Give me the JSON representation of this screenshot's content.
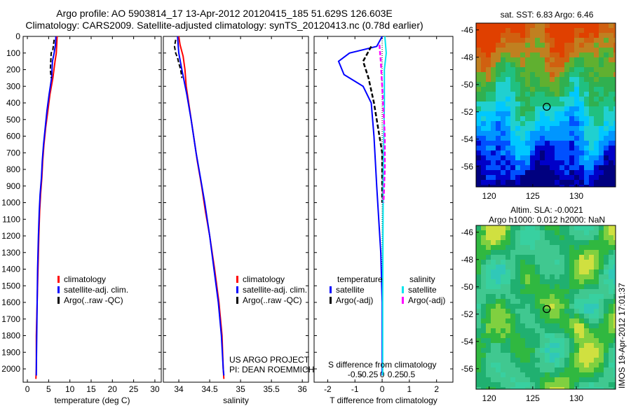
{
  "header": {
    "title1": "Argo profile: AO 5903814_17 13-Apr-2012 20120415_185 51.629S 126.603E",
    "title2": "Climatology: CARS2009. Satellite-adjusted climatology: synTS_20120413.nc (0.78d earlier)"
  },
  "depth_ticks": [
    0,
    100,
    200,
    300,
    400,
    500,
    600,
    700,
    800,
    900,
    1000,
    1100,
    1200,
    1300,
    1400,
    1500,
    1600,
    1700,
    1800,
    1900,
    2000
  ],
  "colors": {
    "climatology": "#ff0000",
    "satellite": "#0000ff",
    "argo": "#000000",
    "sat_salinity": "#00e5ee",
    "argo_salinity": "#ff00ff"
  },
  "chart_data": [
    {
      "type": "line",
      "panel": "temperature",
      "xlabel": "temperature (deg C)",
      "xlim": [
        -1,
        31.5
      ],
      "xticks": [
        0,
        5,
        10,
        15,
        20,
        25,
        30
      ],
      "ylim": [
        0,
        2080
      ],
      "series": [
        {
          "name": "climatology",
          "points": [
            [
              7,
              0
            ],
            [
              6.9,
              50
            ],
            [
              6.8,
              100
            ],
            [
              6.5,
              150
            ],
            [
              6,
              250
            ],
            [
              5.3,
              350
            ],
            [
              4.8,
              450
            ],
            [
              4.3,
              550
            ],
            [
              3.9,
              650
            ],
            [
              3.6,
              750
            ],
            [
              3.4,
              850
            ],
            [
              3.1,
              950
            ],
            [
              2.9,
              1050
            ],
            [
              2.7,
              1200
            ],
            [
              2.5,
              1400
            ],
            [
              2.3,
              1600
            ],
            [
              2.1,
              1800
            ],
            [
              2.1,
              2000
            ],
            [
              2.0,
              2060
            ]
          ]
        },
        {
          "name": "satellite-adj. clim.",
          "points": [
            [
              6.7,
              0
            ],
            [
              6.6,
              50
            ],
            [
              6.3,
              100
            ],
            [
              5.9,
              150
            ],
            [
              5.7,
              250
            ],
            [
              5.1,
              350
            ],
            [
              4.6,
              450
            ],
            [
              4.2,
              550
            ],
            [
              3.8,
              650
            ],
            [
              3.5,
              750
            ],
            [
              3.3,
              850
            ],
            [
              3.0,
              950
            ],
            [
              2.8,
              1050
            ],
            [
              2.6,
              1200
            ],
            [
              2.4,
              1400
            ],
            [
              2.3,
              1600
            ],
            [
              2.2,
              1800
            ],
            [
              2.1,
              2000
            ],
            [
              2.1,
              2040
            ]
          ]
        },
        {
          "name": "Argo(..raw -QC)",
          "points": [
            [
              6.3,
              20
            ],
            [
              6.0,
              80
            ],
            [
              5.6,
              100
            ],
            [
              5.5,
              150
            ],
            [
              5.4,
              200
            ],
            [
              5.6,
              250
            ]
          ]
        }
      ],
      "legend": [
        "climatology",
        "satellite-adj. clim.",
        "Argo(..raw -QC)"
      ]
    },
    {
      "type": "line",
      "panel": "salinity",
      "xlabel": "salinity",
      "xlim": [
        33.75,
        36.1
      ],
      "xticks": [
        34,
        34.5,
        35,
        35.5,
        36
      ],
      "ylim": [
        0,
        2080
      ],
      "series": [
        {
          "name": "climatology",
          "points": [
            [
              34.0,
              0
            ],
            [
              34.02,
              50
            ],
            [
              34.07,
              120
            ],
            [
              34.1,
              200
            ],
            [
              34.12,
              300
            ],
            [
              34.18,
              450
            ],
            [
              34.24,
              600
            ],
            [
              34.3,
              750
            ],
            [
              34.37,
              900
            ],
            [
              34.43,
              1050
            ],
            [
              34.5,
              1200
            ],
            [
              34.58,
              1400
            ],
            [
              34.65,
              1600
            ],
            [
              34.7,
              1800
            ],
            [
              34.72,
              2000
            ],
            [
              34.73,
              2060
            ]
          ]
        },
        {
          "name": "satellite-adj. clim.",
          "points": [
            [
              33.98,
              0
            ],
            [
              33.99,
              50
            ],
            [
              34.0,
              100
            ],
            [
              34.05,
              200
            ],
            [
              34.13,
              350
            ],
            [
              34.2,
              500
            ],
            [
              34.28,
              700
            ],
            [
              34.35,
              850
            ],
            [
              34.42,
              1000
            ],
            [
              34.5,
              1200
            ],
            [
              34.57,
              1400
            ],
            [
              34.64,
              1600
            ],
            [
              34.69,
              1800
            ],
            [
              34.72,
              2000
            ],
            [
              34.73,
              2040
            ]
          ]
        },
        {
          "name": "Argo(..raw -QC)",
          "points": [
            [
              33.95,
              20
            ],
            [
              33.93,
              60
            ],
            [
              33.95,
              100
            ],
            [
              33.98,
              130
            ],
            [
              34.0,
              160
            ],
            [
              34.03,
              200
            ],
            [
              34.05,
              250
            ]
          ]
        }
      ],
      "legend": [
        "climatology",
        "satellite-adj. clim.",
        "Argo(..raw -QC)"
      ]
    },
    {
      "type": "line",
      "panel": "differences",
      "xlabel": "T difference from climatology",
      "xlabel_top": "S difference from climatology",
      "xlim": [
        -2.5,
        2.6
      ],
      "xticks": [
        -2,
        -1,
        0,
        1,
        2
      ],
      "xticks_top": [
        "-0.5",
        "-0.25",
        "0",
        "0.25",
        "0.5"
      ],
      "ylim": [
        0,
        2080
      ],
      "series": [
        {
          "name": "temperature satellite",
          "points": [
            [
              0,
              0
            ],
            [
              -0.2,
              60
            ],
            [
              -1.2,
              100
            ],
            [
              -1.6,
              150
            ],
            [
              -1.4,
              230
            ],
            [
              -0.7,
              300
            ],
            [
              -0.4,
              400
            ],
            [
              -0.3,
              600
            ],
            [
              -0.2,
              900
            ],
            [
              -0.05,
              1300
            ],
            [
              0,
              1600
            ],
            [
              0,
              2000
            ],
            [
              0,
              2040
            ]
          ]
        },
        {
          "name": "temperature Argo(-adj)",
          "points": [
            [
              -0.4,
              60
            ],
            [
              -0.7,
              150
            ],
            [
              -0.5,
              250
            ],
            [
              -0.3,
              400
            ],
            [
              -0.1,
              600
            ],
            [
              0,
              700
            ],
            [
              0,
              900
            ],
            [
              0,
              1000
            ]
          ]
        },
        {
          "name": "salinity satellite",
          "points": [
            [
              0.1,
              0
            ],
            [
              0.15,
              100
            ],
            [
              0.08,
              200
            ],
            [
              0.08,
              400
            ],
            [
              0.06,
              600
            ],
            [
              0.04,
              900
            ],
            [
              0.03,
              1200
            ],
            [
              0.02,
              1600
            ],
            [
              0.02,
              2000
            ],
            [
              0.02,
              2040
            ]
          ]
        },
        {
          "name": "salinity Argo(-adj)",
          "points": [
            [
              -0.1,
              50
            ],
            [
              -0.05,
              150
            ],
            [
              0,
              300
            ],
            [
              0.05,
              450
            ],
            [
              0.1,
              600
            ],
            [
              0.1,
              800
            ],
            [
              0.05,
              1000
            ]
          ]
        }
      ],
      "legend": {
        "temperature_title": "temperature",
        "salinity_title": "salinity",
        "satellite": "satellite",
        "argo": "Argo(-adj)"
      }
    },
    {
      "type": "heatmap",
      "panel": "sst_map",
      "title": "sat. SST: 6.83 Argo: 6.46",
      "xlim": [
        118.5,
        134.5
      ],
      "ylim": [
        -57.5,
        -45.5
      ],
      "xticks": [
        120,
        125,
        130
      ],
      "yticks": [
        -46,
        -48,
        -50,
        -52,
        -54,
        -56
      ],
      "marker": {
        "lon": 126.603,
        "lat": -51.629
      }
    },
    {
      "type": "heatmap",
      "panel": "sla_map",
      "title": "Altim. SLA: -0.0021",
      "subtitle": "Argo h1000: 0.012 h2000: NaN",
      "xlim": [
        118.5,
        134.5
      ],
      "ylim": [
        -57.5,
        -45.5
      ],
      "xticks": [
        120,
        125,
        130
      ],
      "yticks": [
        -46,
        -48,
        -50,
        -52,
        -54,
        -56
      ],
      "marker": {
        "lon": 126.603,
        "lat": -51.629
      }
    }
  ],
  "project": {
    "line1": "US ARGO PROJECT",
    "line2": "PI: DEAN ROEMMICH"
  },
  "imos_label": "IMOS 19-Apr-2012 17:01:37"
}
